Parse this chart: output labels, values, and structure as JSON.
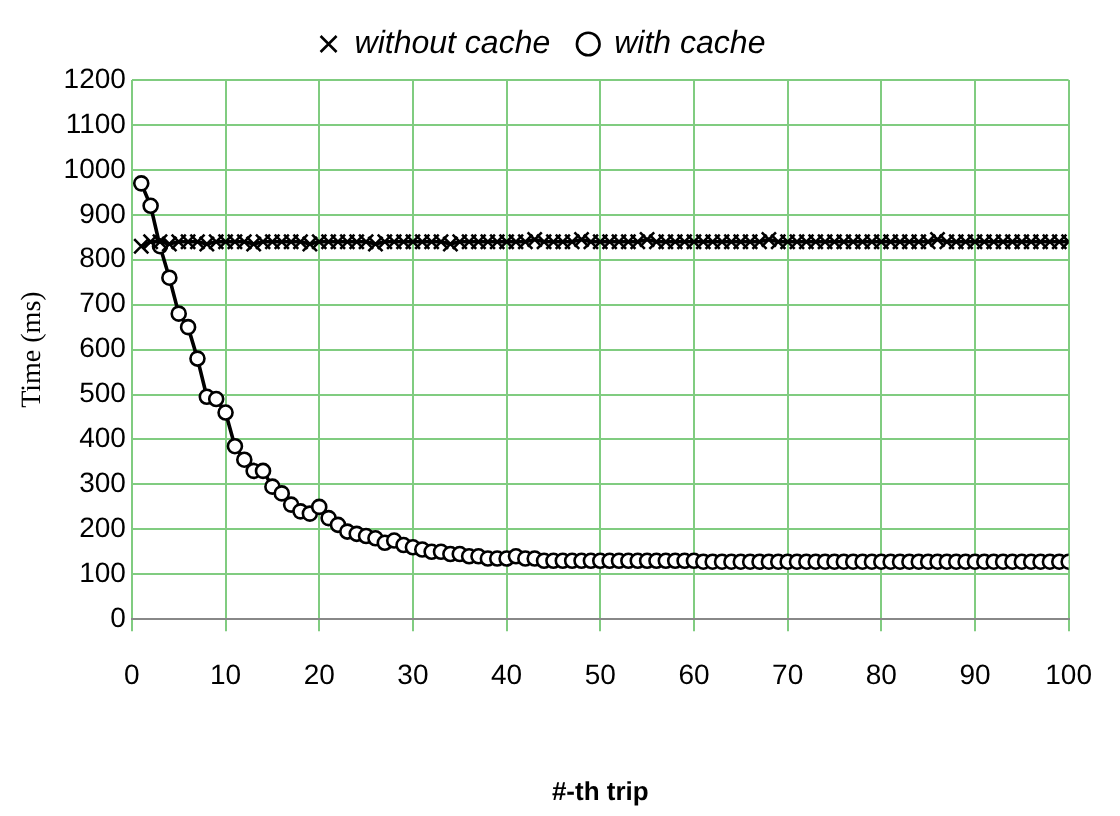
{
  "chart_data": {
    "type": "line",
    "xlabel": "#-th trip",
    "ylabel": "Time (ms)",
    "xlim": [
      0,
      100
    ],
    "xticks": [
      0,
      10,
      20,
      30,
      40,
      50,
      60,
      70,
      80,
      90,
      100
    ],
    "ylim": [
      0,
      1200
    ],
    "yticks": [
      0,
      100,
      200,
      300,
      400,
      500,
      600,
      700,
      800,
      900,
      1000,
      1100,
      1200
    ],
    "grid": true,
    "legend": "top",
    "x": [
      1,
      2,
      3,
      4,
      5,
      6,
      7,
      8,
      9,
      10,
      11,
      12,
      13,
      14,
      15,
      16,
      17,
      18,
      19,
      20,
      21,
      22,
      23,
      24,
      25,
      26,
      27,
      28,
      29,
      30,
      31,
      32,
      33,
      34,
      35,
      36,
      37,
      38,
      39,
      40,
      41,
      42,
      43,
      44,
      45,
      46,
      47,
      48,
      49,
      50,
      51,
      52,
      53,
      54,
      55,
      56,
      57,
      58,
      59,
      60,
      61,
      62,
      63,
      64,
      65,
      66,
      67,
      68,
      69,
      70,
      71,
      72,
      73,
      74,
      75,
      76,
      77,
      78,
      79,
      80,
      81,
      82,
      83,
      84,
      85,
      86,
      87,
      88,
      89,
      90,
      91,
      92,
      93,
      94,
      95,
      96,
      97,
      98,
      99,
      100
    ],
    "series": [
      {
        "name": "without cache",
        "color": "#000000",
        "marker": "cross",
        "values": [
          830,
          840,
          840,
          835,
          840,
          840,
          840,
          835,
          840,
          840,
          840,
          840,
          835,
          840,
          840,
          840,
          840,
          840,
          835,
          840,
          840,
          840,
          840,
          840,
          840,
          835,
          840,
          840,
          840,
          840,
          840,
          840,
          840,
          835,
          840,
          840,
          840,
          840,
          840,
          840,
          840,
          840,
          845,
          840,
          840,
          840,
          840,
          845,
          840,
          840,
          840,
          840,
          840,
          840,
          845,
          840,
          840,
          840,
          840,
          840,
          840,
          840,
          840,
          840,
          840,
          840,
          840,
          845,
          840,
          840,
          840,
          840,
          840,
          840,
          840,
          840,
          840,
          840,
          840,
          840,
          840,
          840,
          840,
          840,
          840,
          845,
          840,
          840,
          840,
          840,
          840,
          840,
          840,
          840,
          840,
          840,
          840,
          840,
          840,
          840
        ]
      },
      {
        "name": "with cache",
        "color": "#000000",
        "marker": "circle",
        "values": [
          970,
          920,
          830,
          760,
          680,
          650,
          580,
          495,
          490,
          460,
          385,
          355,
          330,
          330,
          295,
          280,
          255,
          240,
          235,
          250,
          225,
          210,
          195,
          190,
          185,
          180,
          170,
          175,
          165,
          160,
          155,
          150,
          150,
          145,
          145,
          140,
          140,
          135,
          135,
          135,
          140,
          135,
          135,
          130,
          130,
          130,
          130,
          130,
          130,
          130,
          130,
          130,
          130,
          130,
          130,
          130,
          130,
          130,
          130,
          130,
          128,
          128,
          128,
          128,
          128,
          128,
          128,
          128,
          128,
          128,
          128,
          128,
          128,
          128,
          128,
          128,
          128,
          128,
          128,
          128,
          128,
          128,
          128,
          128,
          128,
          128,
          128,
          128,
          128,
          128,
          128,
          128,
          128,
          128,
          128,
          128,
          128,
          128,
          128,
          128
        ]
      }
    ]
  }
}
